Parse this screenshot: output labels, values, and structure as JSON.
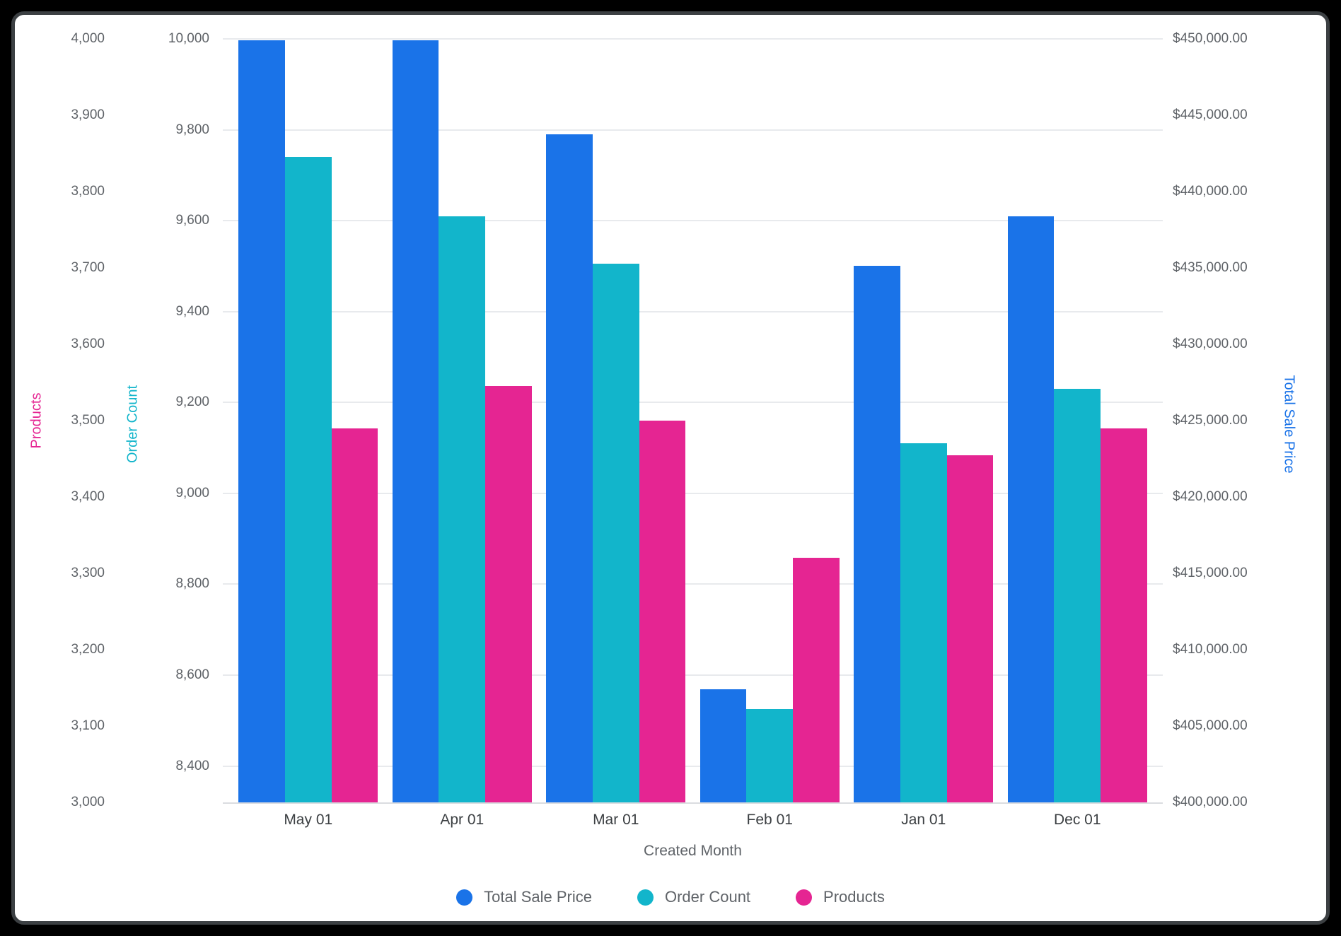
{
  "chart_data": {
    "type": "bar",
    "variant": "grouped-vertical",
    "categories": [
      "May 01",
      "Apr 01",
      "Mar 01",
      "Feb 01",
      "Jan 01",
      "Dec 01"
    ],
    "xlabel": "Created Month",
    "grid": "horizontal, on order_count ticks",
    "legend_position": "bottom-center",
    "series": [
      {
        "name": "Total Sale Price",
        "color": "#1A73E8",
        "axis": "total_sale_price",
        "values": [
          449900,
          449900,
          443750,
          407400,
          435150,
          438400
        ]
      },
      {
        "name": "Order Count",
        "color": "#12B5CB",
        "axis": "order_count",
        "values": [
          9740,
          9610,
          9505,
          8525,
          9110,
          9230
        ]
      },
      {
        "name": "Products",
        "color": "#E52592",
        "axis": "products",
        "values": [
          3490,
          3545,
          3500,
          3320,
          3455,
          3490
        ]
      }
    ],
    "axes": {
      "products": {
        "title": "Products",
        "color": "#E52592",
        "side": "outer-left",
        "min": 3000,
        "max": 4000,
        "ticks": [
          {
            "v": 3000,
            "label": "3,000"
          },
          {
            "v": 3100,
            "label": "3,100"
          },
          {
            "v": 3200,
            "label": "3,200"
          },
          {
            "v": 3300,
            "label": "3,300"
          },
          {
            "v": 3400,
            "label": "3,400"
          },
          {
            "v": 3500,
            "label": "3,500"
          },
          {
            "v": 3600,
            "label": "3,600"
          },
          {
            "v": 3700,
            "label": "3,700"
          },
          {
            "v": 3800,
            "label": "3,800"
          },
          {
            "v": 3900,
            "label": "3,900"
          },
          {
            "v": 4000,
            "label": "4,000"
          }
        ]
      },
      "order_count": {
        "title": "Order Count",
        "color": "#12B5CB",
        "side": "inner-left",
        "min": 8320,
        "max": 10000,
        "ticks": [
          {
            "v": 8400,
            "label": "8,400"
          },
          {
            "v": 8600,
            "label": "8,600"
          },
          {
            "v": 8800,
            "label": "8,800"
          },
          {
            "v": 9000,
            "label": "9,000"
          },
          {
            "v": 9200,
            "label": "9,200"
          },
          {
            "v": 9400,
            "label": "9,400"
          },
          {
            "v": 9600,
            "label": "9,600"
          },
          {
            "v": 9800,
            "label": "9,800"
          },
          {
            "v": 10000,
            "label": "10,000"
          }
        ]
      },
      "total_sale_price": {
        "title": "Total Sale Price",
        "color": "#1A73E8",
        "side": "right",
        "min": 400000,
        "max": 450000,
        "ticks": [
          {
            "v": 400000,
            "label": "$400,000.00"
          },
          {
            "v": 405000,
            "label": "$405,000.00"
          },
          {
            "v": 410000,
            "label": "$410,000.00"
          },
          {
            "v": 415000,
            "label": "$415,000.00"
          },
          {
            "v": 420000,
            "label": "$420,000.00"
          },
          {
            "v": 425000,
            "label": "$425,000.00"
          },
          {
            "v": 430000,
            "label": "$430,000.00"
          },
          {
            "v": 435000,
            "label": "$435,000.00"
          },
          {
            "v": 440000,
            "label": "$440,000.00"
          },
          {
            "v": 445000,
            "label": "$445,000.00"
          },
          {
            "v": 450000,
            "label": "$450,000.00"
          }
        ]
      }
    }
  }
}
